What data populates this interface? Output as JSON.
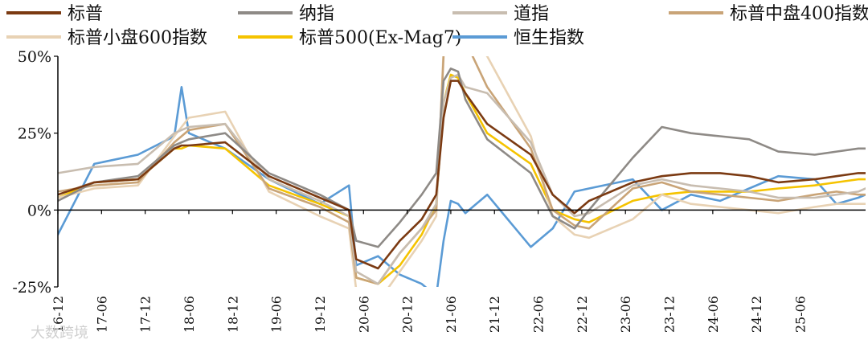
{
  "chart_data": {
    "type": "line",
    "title": "",
    "xlabel": "",
    "ylabel": "",
    "ylim": [
      -25,
      50
    ],
    "yticks": [
      -25,
      0,
      25,
      50
    ],
    "ytick_labels": [
      "-25%",
      "0%",
      "25%",
      "50%"
    ],
    "xtick_labels": [
      "16-12",
      "17-06",
      "17-12",
      "18-06",
      "18-12",
      "19-06",
      "19-12",
      "20-06",
      "20-12",
      "21-06",
      "21-12",
      "22-06",
      "22-12",
      "23-06",
      "23-12",
      "24-06",
      "24-12",
      "25-06"
    ],
    "xlim_months": [
      0,
      111
    ],
    "grid": false,
    "legend_position": "top",
    "x_months": [
      0,
      5,
      11,
      16,
      17,
      18,
      23,
      29,
      36,
      40,
      41,
      44,
      47,
      50,
      52,
      53,
      54,
      55,
      56,
      59,
      65,
      68,
      71,
      73,
      79,
      83,
      87,
      91,
      95,
      99,
      104,
      107,
      110,
      111
    ],
    "series": [
      {
        "name": "标普",
        "color": "#7b3a12",
        "values": [
          5,
          9,
          10,
          20,
          21,
          21,
          22,
          11,
          4,
          0,
          -16,
          -19,
          -10,
          -3,
          5,
          30,
          42,
          42,
          38,
          28,
          18,
          5,
          -1,
          3,
          9,
          11,
          12,
          12,
          11,
          9,
          10,
          11,
          12,
          12
        ]
      },
      {
        "name": "纳指",
        "color": "#8e8a86",
        "values": [
          3,
          9,
          11,
          21,
          22,
          23,
          25,
          12,
          5,
          0,
          -10,
          -12,
          -4,
          5,
          12,
          42,
          46,
          45,
          36,
          23,
          12,
          -2,
          -6,
          0,
          17,
          27,
          25,
          24,
          23,
          19,
          18,
          19,
          20,
          20
        ]
      },
      {
        "name": "道指",
        "color": "#c8bdb0",
        "values": [
          12,
          14,
          15,
          25,
          26,
          27,
          28,
          10,
          3,
          -2,
          -20,
          -24,
          -14,
          -6,
          2,
          35,
          43,
          44,
          40,
          38,
          22,
          5,
          -2,
          -1,
          8,
          10,
          8,
          7,
          6,
          4,
          4,
          5,
          6,
          7
        ]
      },
      {
        "name": "标普中盘400指数",
        "color": "#c9a477",
        "values": [
          6,
          8,
          9,
          22,
          24,
          26,
          28,
          7,
          1,
          -4,
          -22,
          -24,
          -14,
          -6,
          0,
          50,
          60,
          58,
          55,
          40,
          20,
          0,
          -5,
          -6,
          7,
          9,
          6,
          5,
          4,
          3,
          5,
          6,
          5,
          5
        ]
      },
      {
        "name": "标普小盘600指数",
        "color": "#e8d2b4",
        "values": [
          4,
          7,
          8,
          24,
          27,
          30,
          32,
          6,
          -2,
          -6,
          -26,
          -30,
          -20,
          -10,
          -2,
          52,
          62,
          60,
          58,
          50,
          24,
          -2,
          -8,
          -9,
          -3,
          5,
          2,
          1,
          0,
          -1,
          1,
          2,
          2,
          2
        ]
      },
      {
        "name": "标普500(Ex-Mag7)",
        "color": "#f5c300",
        "values": [
          4,
          9,
          10,
          20,
          20,
          21,
          20,
          8,
          2,
          -2,
          -22,
          -24,
          -18,
          -8,
          2,
          35,
          44,
          43,
          38,
          25,
          15,
          0,
          -3,
          -4,
          3,
          5,
          6,
          6,
          6,
          7,
          8,
          9,
          10,
          10
        ]
      },
      {
        "name": "恒生指数",
        "color": "#5b9bd5",
        "values": [
          -8,
          15,
          18,
          24,
          40,
          25,
          20,
          10,
          2,
          8,
          -18,
          -15,
          -21,
          -24,
          -28,
          -10,
          3,
          2,
          -1,
          5,
          -12,
          -6,
          6,
          7,
          10,
          0,
          5,
          3,
          7,
          11,
          10,
          2,
          4,
          5
        ]
      }
    ]
  },
  "watermark": "大数跨境"
}
